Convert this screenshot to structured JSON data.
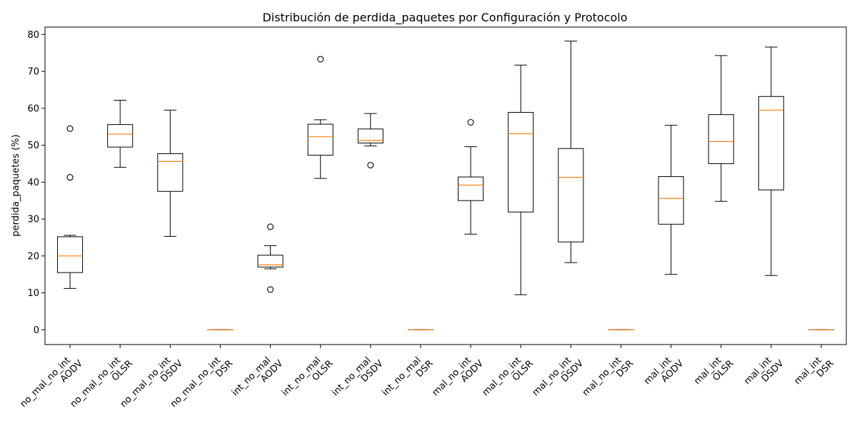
{
  "chart_data": {
    "type": "box",
    "title": "Distribución de perdida_paquetes por Configuración y Protocolo",
    "xlabel": "",
    "ylabel": "perdida_paquetes (%)",
    "ylim": [
      -4,
      82
    ],
    "yticks": [
      0,
      10,
      20,
      30,
      40,
      50,
      60,
      70,
      80
    ],
    "grid": false,
    "colors": {
      "box": "#000000",
      "median": "#ff7f0e"
    },
    "categories": [
      [
        "no_mal_no_int",
        "AODV"
      ],
      [
        "no_mal_no_int",
        "OLSR"
      ],
      [
        "no_mal_no_int",
        "DSDV"
      ],
      [
        "no_mal_no_int",
        "DSR"
      ],
      [
        "int_no_mal",
        "AODV"
      ],
      [
        "int_no_mal",
        "OLSR"
      ],
      [
        "int_no_mal",
        "DSDV"
      ],
      [
        "int_no_mal",
        "DSR"
      ],
      [
        "mal_no_int",
        "AODV"
      ],
      [
        "mal_no_int",
        "OLSR"
      ],
      [
        "mal_no_int",
        "DSDV"
      ],
      [
        "mal_no_int",
        "DSR"
      ],
      [
        "mal_int",
        "AODV"
      ],
      [
        "mal_int",
        "OLSR"
      ],
      [
        "mal_int",
        "DSDV"
      ],
      [
        "mal_int",
        "DSR"
      ]
    ],
    "boxes": [
      {
        "whislo": 11.2,
        "q1": 15.5,
        "med": 20.0,
        "q3": 25.2,
        "whishi": 25.6,
        "fliers": [
          41.3,
          54.5
        ]
      },
      {
        "whislo": 44.0,
        "q1": 49.5,
        "med": 53.0,
        "q3": 55.6,
        "whishi": 62.2,
        "fliers": []
      },
      {
        "whislo": 25.3,
        "q1": 37.5,
        "med": 45.6,
        "q3": 47.7,
        "whishi": 59.5,
        "fliers": []
      },
      {
        "whislo": 0.0,
        "q1": 0.0,
        "med": 0.0,
        "q3": 0.0,
        "whishi": 0.0,
        "fliers": []
      },
      {
        "whislo": 16.5,
        "q1": 17.0,
        "med": 17.6,
        "q3": 20.2,
        "whishi": 22.8,
        "fliers": [
          10.9,
          27.9
        ]
      },
      {
        "whislo": 41.0,
        "q1": 47.3,
        "med": 52.3,
        "q3": 55.7,
        "whishi": 56.9,
        "fliers": [
          73.3
        ]
      },
      {
        "whislo": 49.8,
        "q1": 50.6,
        "med": 51.3,
        "q3": 54.4,
        "whishi": 58.6,
        "fliers": [
          44.6
        ]
      },
      {
        "whislo": 0.0,
        "q1": 0.0,
        "med": 0.0,
        "q3": 0.0,
        "whishi": 0.0,
        "fliers": []
      },
      {
        "whislo": 25.9,
        "q1": 35.0,
        "med": 39.2,
        "q3": 41.4,
        "whishi": 49.6,
        "fliers": [
          56.2
        ]
      },
      {
        "whislo": 9.5,
        "q1": 31.9,
        "med": 53.1,
        "q3": 58.9,
        "whishi": 71.7,
        "fliers": []
      },
      {
        "whislo": 18.2,
        "q1": 23.8,
        "med": 41.3,
        "q3": 49.1,
        "whishi": 78.2,
        "fliers": []
      },
      {
        "whislo": 0.0,
        "q1": 0.0,
        "med": 0.0,
        "q3": 0.0,
        "whishi": 0.0,
        "fliers": []
      },
      {
        "whislo": 15.0,
        "q1": 28.6,
        "med": 35.6,
        "q3": 41.5,
        "whishi": 55.4,
        "fliers": []
      },
      {
        "whislo": 34.8,
        "q1": 45.0,
        "med": 51.0,
        "q3": 58.3,
        "whishi": 74.3,
        "fliers": []
      },
      {
        "whislo": 14.7,
        "q1": 37.9,
        "med": 59.5,
        "q3": 63.2,
        "whishi": 76.6,
        "fliers": []
      },
      {
        "whislo": 0.0,
        "q1": 0.0,
        "med": 0.0,
        "q3": 0.0,
        "whishi": 0.0,
        "fliers": []
      }
    ]
  }
}
